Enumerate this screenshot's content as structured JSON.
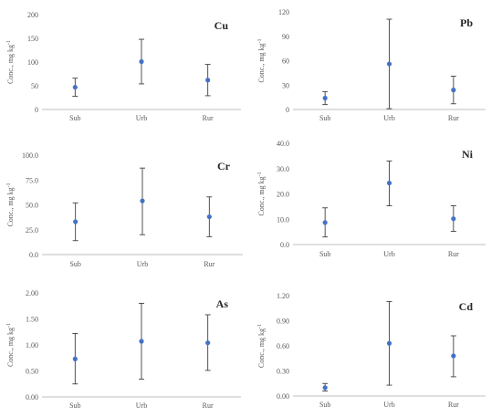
{
  "y_axis_label_prefix": "Conc., mg kg",
  "y_axis_label_sup": "-1",
  "chart_data": [
    {
      "type": "scatter",
      "title": "Cu",
      "categories": [
        "Sub",
        "Urb",
        "Rur"
      ],
      "values": [
        47,
        101,
        62
      ],
      "lower": [
        28,
        54,
        29
      ],
      "upper": [
        66,
        148,
        95
      ],
      "ylim": [
        0,
        200
      ],
      "yticks": [
        "0",
        "50",
        "100",
        "150",
        "200"
      ],
      "ylabel": "Conc., mg kg-1",
      "color": "#4472c4",
      "grid": false
    },
    {
      "type": "scatter",
      "title": "Pb",
      "categories": [
        "Sub",
        "Urb",
        "Rur"
      ],
      "values": [
        14,
        56,
        24
      ],
      "lower": [
        6,
        1,
        7
      ],
      "upper": [
        22,
        111,
        41
      ],
      "ylim": [
        0,
        120
      ],
      "yticks": [
        "0",
        "30",
        "60",
        "90",
        "120"
      ],
      "ylabel": "Conc., mg kg-1",
      "color": "#4472c4",
      "grid": false
    },
    {
      "type": "scatter",
      "title": "Cr",
      "categories": [
        "Sub",
        "Urb",
        "Rur"
      ],
      "values": [
        33,
        54,
        38
      ],
      "lower": [
        14,
        20,
        18
      ],
      "upper": [
        52,
        87,
        58
      ],
      "ylim": [
        0,
        100
      ],
      "yticks": [
        "0.0",
        "25.0",
        "50.0",
        "75.0",
        "100.0"
      ],
      "ylabel": "Conc., mg kg-1",
      "color": "#4472c4",
      "grid": false
    },
    {
      "type": "scatter",
      "title": "Ni",
      "categories": [
        "Sub",
        "Urb",
        "Rur"
      ],
      "values": [
        8.7,
        24.3,
        10.2
      ],
      "lower": [
        3.0,
        15.3,
        5.2
      ],
      "upper": [
        14.5,
        33.0,
        15.3
      ],
      "ylim": [
        0,
        40
      ],
      "yticks": [
        "0.0",
        "10.0",
        "20.0",
        "30.0",
        "40.0"
      ],
      "ylabel": "Conc., mg kg-1",
      "color": "#4472c4",
      "grid": false
    },
    {
      "type": "scatter",
      "title": "As",
      "categories": [
        "Sub",
        "Urb",
        "Rur"
      ],
      "values": [
        0.73,
        1.07,
        1.04
      ],
      "lower": [
        0.25,
        0.34,
        0.51
      ],
      "upper": [
        1.22,
        1.8,
        1.58
      ],
      "ylim": [
        0,
        2
      ],
      "yticks": [
        "0.00",
        "0.50",
        "1.00",
        "1.50",
        "2.00"
      ],
      "ylabel": "Conc., mg kg-1",
      "color": "#4472c4",
      "grid": false
    },
    {
      "type": "scatter",
      "title": "Cd",
      "categories": [
        "Sub",
        "Urb",
        "Rur"
      ],
      "values": [
        0.1,
        0.63,
        0.48
      ],
      "lower": [
        0.06,
        0.13,
        0.23
      ],
      "upper": [
        0.15,
        1.13,
        0.72
      ],
      "ylim": [
        0,
        1.2
      ],
      "yticks": [
        "0.00",
        "0.30",
        "0.60",
        "0.90",
        "1.20"
      ],
      "ylabel": "Conc., mg kg-1",
      "color": "#4472c4",
      "grid": false
    }
  ]
}
